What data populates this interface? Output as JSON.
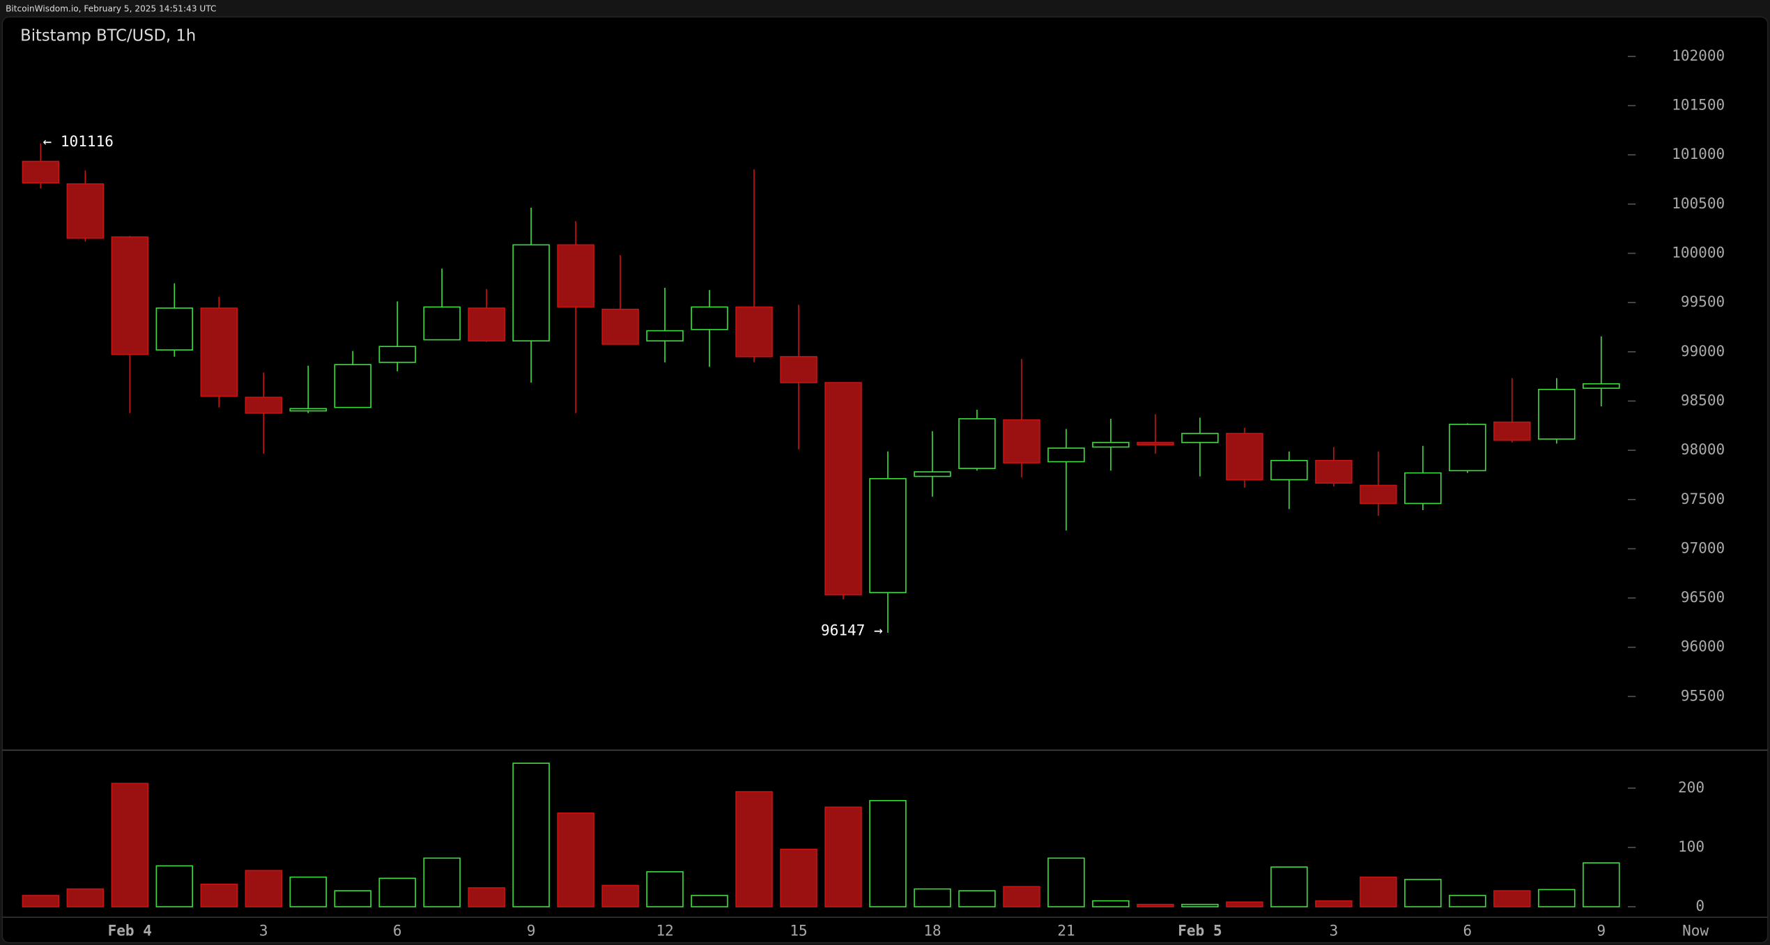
{
  "header": "BitcoinWisdom.io, February 5, 2025 14:51:43 UTC",
  "chart_data": {
    "type": "candlestick",
    "title": "Bitstamp BTC/USD, 1h",
    "categories": [
      null,
      null,
      "Feb 4",
      null,
      null,
      "3",
      null,
      null,
      "6",
      null,
      null,
      "9",
      null,
      null,
      "12",
      null,
      null,
      "15",
      null,
      null,
      "18",
      null,
      null,
      "21",
      null,
      null,
      "Feb 5",
      null,
      null,
      "3",
      null,
      null,
      "6",
      null,
      null,
      "9"
    ],
    "x_end_label": "Now",
    "open": [
      100934,
      100705,
      100166,
      99019,
      99444,
      98538,
      98400,
      98435,
      98893,
      99122,
      99444,
      99111,
      100086,
      99432,
      99111,
      99226,
      99455,
      98951,
      98687,
      96555,
      97735,
      97816,
      98309,
      97884,
      98033,
      98079,
      98079,
      98171,
      97701,
      97896,
      97644,
      97460,
      97793,
      98286,
      98114,
      98630
    ],
    "high": [
      101116,
      100842,
      100177,
      99696,
      99558,
      98790,
      98859,
      99008,
      99512,
      99845,
      99638,
      100464,
      100326,
      99982,
      99650,
      99627,
      100854,
      99478,
      98687,
      97988,
      98194,
      98412,
      98928,
      98217,
      98320,
      98366,
      98331,
      98228,
      97988,
      98033,
      97988,
      98045,
      98274,
      98733,
      98733,
      99157
    ],
    "low": [
      100659,
      100120,
      98377,
      98951,
      98435,
      97965,
      98377,
      98435,
      98802,
      99122,
      99100,
      98687,
      98377,
      99077,
      98893,
      98847,
      98893,
      98010,
      96486,
      96147,
      97529,
      97793,
      97724,
      97185,
      97793,
      97965,
      97735,
      97621,
      97403,
      97632,
      97334,
      97392,
      97770,
      98079,
      98068,
      98446
    ],
    "close": [
      100716,
      100154,
      98974,
      99444,
      98549,
      98377,
      98423,
      98870,
      99054,
      99455,
      99111,
      100086,
      99455,
      99077,
      99214,
      99455,
      98951,
      98687,
      96532,
      97712,
      97781,
      98320,
      97873,
      98022,
      98079,
      98056,
      98171,
      97701,
      97896,
      97667,
      97460,
      97770,
      98263,
      98102,
      98618,
      98675
    ],
    "volume": [
      19,
      30,
      208,
      69,
      38,
      61,
      50,
      27,
      48,
      82,
      32,
      242,
      158,
      36,
      59,
      19,
      194,
      97,
      168,
      179,
      30,
      27,
      34,
      82,
      10,
      4,
      4,
      8,
      67,
      10,
      50,
      46,
      19,
      27,
      29,
      74
    ],
    "up_color": "#3ddc3d",
    "down_color": "#c41414",
    "ylim": [
      94960,
      102400
    ],
    "yticks": [
      95500,
      96000,
      96500,
      97000,
      97500,
      98000,
      98500,
      99000,
      99500,
      100000,
      100500,
      101000,
      101500,
      102000
    ],
    "volume_ylim": [
      -13,
      263
    ],
    "volume_yticks": [
      0,
      100,
      200
    ],
    "annotations": [
      "← 101116",
      "96147 →"
    ]
  }
}
